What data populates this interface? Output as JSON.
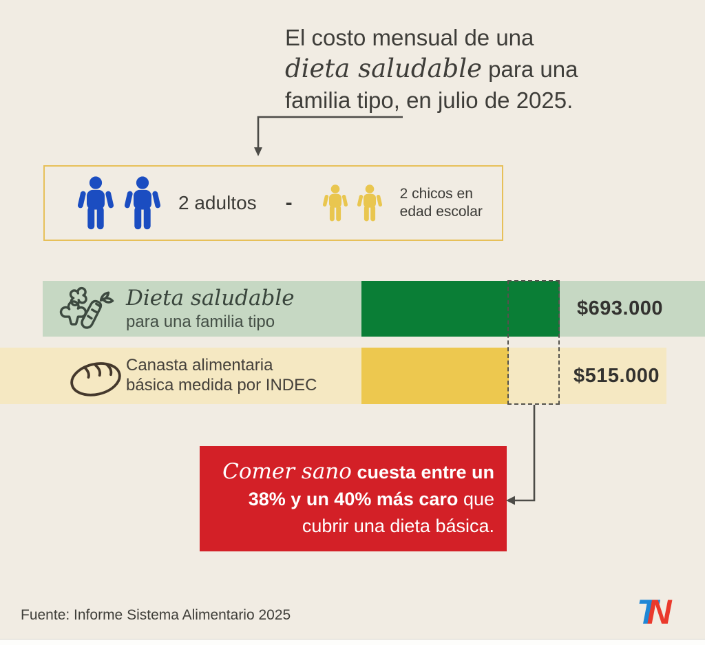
{
  "title": {
    "line1": "El costo mensual de una",
    "line2_script": "dieta saludable",
    "line2_rest": " para una",
    "line3": "familia tipo, en julio de 2025."
  },
  "family_box": {
    "adults_count_label": "2 adultos",
    "separator": "-",
    "children_count_label": "2 chicos en edad escolar",
    "adult_icon_color": "#1b4dc1",
    "child_icon_color": "#e9c64f",
    "border_color": "#e7c059"
  },
  "chart_data": {
    "type": "bar",
    "orientation": "horizontal",
    "currency": "ARS",
    "period": "julio de 2025",
    "title": "El costo mensual de una dieta saludable para una familia tipo, en julio de 2025.",
    "categories": [
      "Dieta saludable para una familia tipo",
      "Canasta alimentaria básica medida por INDEC"
    ],
    "values": [
      693000,
      515000
    ],
    "value_labels": [
      "$693.000",
      "$515.000"
    ],
    "bar_colors": [
      "#0a7e36",
      "#edc84f"
    ],
    "band_colors": [
      "#c6d8c3",
      "#f5e8c2"
    ],
    "grid": false,
    "legend_position": "inline-left",
    "annotation": "Comer sano cuesta entre un 38% y un 40% más caro que cubrir una dieta básica."
  },
  "rows": {
    "healthy": {
      "title_script": "Dieta saludable",
      "subtitle": "para una familia tipo",
      "value": "$693.000",
      "icon": "vegetables-icon"
    },
    "basic": {
      "line1": "Canasta alimentaria",
      "line2": "básica medida por INDEC",
      "value": "$515.000",
      "icon": "bread-icon"
    }
  },
  "callout": {
    "script_intro": "Comer sano",
    "bold_part1": " cuesta entre un",
    "bold_part2": "38% y un 40% más caro",
    "regular_part2": " que",
    "line3": "cubrir una dieta básica.",
    "background": "#d32027",
    "text_color": "#ffffff"
  },
  "footer": {
    "source": "Fuente: Informe Sistema Alimentario 2025",
    "logo": {
      "t": "T",
      "n": "N",
      "t_color": "#1f87d6",
      "n_color": "#ea392c"
    }
  },
  "colors": {
    "background": "#f1ece3",
    "text": "#3b3a36",
    "arrow": "#4c4b47",
    "dashed_box": "#54524c",
    "red_box": "#d32027"
  }
}
